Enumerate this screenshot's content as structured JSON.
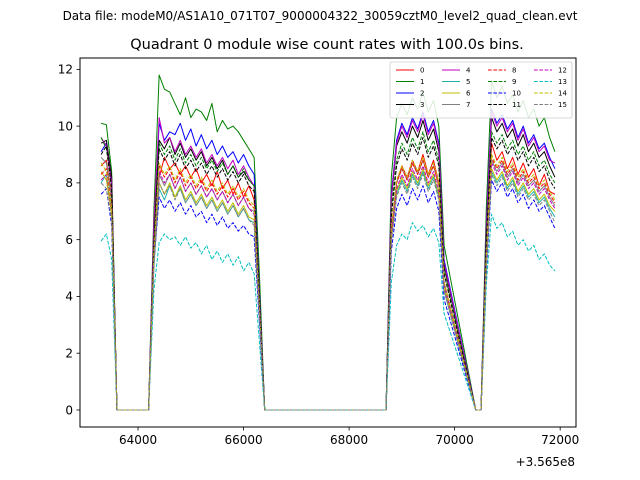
{
  "chart_data": {
    "type": "line",
    "suptitle": "Data file: modeM0/AS1A10_071T07_9000004322_30059cztM0_level2_quad_clean.evt",
    "title": "Quadrant 0 module wise count rates with 100.0s bins.",
    "xlabel": "",
    "ylabel": "",
    "x_offset_label": "+3.565e8",
    "xlim": [
      62900,
      72300
    ],
    "ylim": [
      -0.6,
      12.4
    ],
    "xticks": [
      64000,
      66000,
      68000,
      70000,
      72000
    ],
    "xtick_labels": [
      "64000",
      "66000",
      "68000",
      "70000",
      "72000"
    ],
    "yticks": [
      0,
      2,
      4,
      6,
      8,
      10,
      12
    ],
    "ytick_labels": [
      "0",
      "2",
      "4",
      "6",
      "8",
      "10",
      "12"
    ],
    "grid": false,
    "legend_position": "top-right",
    "legend_ncol": 4,
    "x": [
      63300,
      63400,
      63500,
      63600,
      64200,
      64300,
      64400,
      64500,
      64600,
      64700,
      64800,
      64900,
      65000,
      65100,
      65200,
      65300,
      65400,
      65500,
      65600,
      65700,
      65800,
      65900,
      66000,
      66100,
      66200,
      66300,
      66400,
      66500,
      66600,
      68700,
      68800,
      68900,
      69000,
      69100,
      69200,
      69300,
      69400,
      69500,
      69600,
      69700,
      69800,
      70400,
      70500,
      70600,
      70700,
      70800,
      70900,
      71000,
      71100,
      71200,
      71300,
      71400,
      71500,
      71600,
      71700,
      71800,
      71900
    ],
    "series": [
      {
        "name": "0",
        "color": "#ff0000",
        "dash": "solid",
        "values": [
          8.6,
          8.8,
          7.5,
          0.0,
          0.0,
          5.5,
          8.2,
          8.9,
          8.5,
          8.7,
          8.3,
          8.6,
          8.2,
          8.5,
          8.0,
          8.3,
          7.9,
          8.4,
          7.8,
          8.1,
          7.6,
          8.0,
          7.5,
          7.9,
          7.4,
          3.8,
          0.0,
          0.0,
          0.0,
          0.0,
          6.4,
          8.0,
          8.6,
          8.2,
          8.8,
          8.4,
          9.0,
          8.3,
          8.8,
          8.0,
          4.5,
          0.0,
          0.0,
          5.3,
          9.4,
          8.8,
          9.1,
          8.5,
          8.9,
          8.3,
          8.7,
          8.2,
          8.5,
          7.9,
          8.3,
          7.7,
          7.6
        ]
      },
      {
        "name": "1",
        "color": "#008000",
        "dash": "solid",
        "values": [
          10.1,
          10.05,
          8.4,
          0.0,
          0.0,
          7.0,
          11.8,
          11.3,
          11.2,
          10.8,
          10.4,
          11.0,
          10.3,
          10.6,
          10.5,
          10.2,
          10.8,
          9.8,
          10.2,
          9.9,
          10.0,
          9.8,
          9.5,
          9.2,
          8.9,
          4.8,
          0.0,
          0.0,
          0.0,
          0.0,
          8.2,
          10.3,
          10.8,
          10.4,
          11.0,
          10.6,
          11.2,
          10.5,
          10.9,
          10.0,
          5.8,
          0.0,
          0.0,
          7.1,
          11.6,
          11.0,
          11.4,
          10.8,
          11.1,
          10.5,
          10.9,
          10.3,
          10.6,
          10.0,
          10.3,
          9.6,
          9.1
        ]
      },
      {
        "name": "2",
        "color": "#0000ff",
        "dash": "solid",
        "values": [
          9.1,
          9.4,
          7.9,
          0.0,
          0.0,
          6.4,
          10.1,
          9.5,
          9.8,
          9.7,
          10.1,
          9.5,
          9.9,
          9.3,
          9.7,
          9.2,
          9.5,
          9.0,
          9.3,
          8.9,
          9.1,
          8.7,
          9.0,
          8.6,
          8.3,
          4.2,
          0.0,
          0.0,
          0.0,
          0.0,
          7.6,
          9.5,
          10.1,
          9.7,
          10.3,
          9.9,
          10.5,
          9.8,
          10.2,
          9.4,
          5.3,
          0.0,
          0.0,
          6.5,
          10.6,
          10.1,
          10.4,
          9.9,
          10.2,
          9.6,
          10.0,
          9.4,
          9.7,
          9.2,
          9.4,
          8.9,
          8.5
        ]
      },
      {
        "name": "3",
        "color": "#000000",
        "dash": "solid",
        "values": [
          9.4,
          9.5,
          8.2,
          0.0,
          0.0,
          6.2,
          9.5,
          9.2,
          9.6,
          9.0,
          9.4,
          8.9,
          9.2,
          8.8,
          9.1,
          8.6,
          8.9,
          8.5,
          8.8,
          8.3,
          8.6,
          8.2,
          8.4,
          8.1,
          7.9,
          4.0,
          0.0,
          0.0,
          0.0,
          0.0,
          7.4,
          9.3,
          9.8,
          9.4,
          10.0,
          9.6,
          10.2,
          9.5,
          9.9,
          9.1,
          5.1,
          0.0,
          0.0,
          6.3,
          10.3,
          9.8,
          10.1,
          9.6,
          9.9,
          9.3,
          9.7,
          9.1,
          9.4,
          8.9,
          9.1,
          8.6,
          8.2
        ]
      },
      {
        "name": "4",
        "color": "#bf00bf",
        "dash": "solid",
        "values": [
          9.6,
          9.3,
          8.0,
          0.0,
          0.0,
          6.6,
          10.3,
          9.4,
          9.6,
          9.1,
          9.5,
          9.0,
          9.3,
          8.9,
          9.2,
          8.7,
          9.0,
          8.6,
          8.9,
          8.5,
          8.8,
          8.3,
          8.6,
          8.2,
          7.9,
          4.1,
          0.0,
          0.0,
          0.0,
          0.0,
          7.5,
          9.4,
          10.0,
          9.6,
          10.2,
          9.8,
          10.4,
          9.7,
          10.1,
          9.3,
          5.2,
          0.0,
          0.0,
          6.4,
          10.5,
          10.0,
          10.3,
          9.8,
          10.1,
          9.5,
          9.9,
          9.3,
          9.6,
          9.1,
          9.3,
          8.8,
          8.7
        ]
      },
      {
        "name": "5",
        "color": "#20b2aa",
        "dash": "solid",
        "values": [
          8.0,
          8.3,
          7.0,
          0.0,
          0.0,
          5.0,
          7.8,
          7.4,
          7.9,
          7.5,
          7.8,
          7.3,
          7.6,
          7.2,
          7.5,
          7.1,
          7.4,
          7.0,
          7.3,
          6.9,
          7.2,
          6.8,
          7.1,
          6.7,
          6.6,
          3.3,
          0.0,
          0.0,
          0.0,
          0.0,
          6.0,
          7.6,
          8.1,
          7.7,
          8.3,
          7.9,
          8.4,
          7.8,
          8.2,
          7.5,
          4.2,
          0.0,
          0.0,
          5.0,
          8.4,
          8.0,
          8.3,
          7.8,
          8.1,
          7.6,
          7.9,
          7.5,
          7.7,
          7.3,
          7.5,
          7.1,
          6.8
        ]
      },
      {
        "name": "6",
        "color": "#bfbf00",
        "dash": "solid",
        "values": [
          8.4,
          8.1,
          6.9,
          0.0,
          0.0,
          5.2,
          8.0,
          7.6,
          8.0,
          7.5,
          7.9,
          7.4,
          7.7,
          7.3,
          7.6,
          7.2,
          7.5,
          7.1,
          7.4,
          7.0,
          7.3,
          6.9,
          7.2,
          6.8,
          6.7,
          3.4,
          0.0,
          0.0,
          0.0,
          0.0,
          6.1,
          7.7,
          8.2,
          7.8,
          8.4,
          8.0,
          8.5,
          7.9,
          8.3,
          7.6,
          4.3,
          0.0,
          0.0,
          5.1,
          8.5,
          8.1,
          8.4,
          7.9,
          8.2,
          7.7,
          8.0,
          7.6,
          7.8,
          7.4,
          7.6,
          7.2,
          7.0
        ]
      },
      {
        "name": "7",
        "color": "#808080",
        "dash": "solid",
        "values": [
          8.9,
          8.7,
          7.4,
          0.0,
          0.0,
          5.4,
          8.3,
          7.9,
          8.3,
          7.8,
          8.2,
          7.7,
          8.0,
          7.6,
          7.9,
          7.5,
          7.8,
          7.4,
          7.7,
          7.3,
          7.6,
          7.2,
          7.5,
          7.1,
          7.0,
          3.5,
          0.0,
          0.0,
          0.0,
          0.0,
          6.3,
          8.0,
          8.5,
          8.1,
          8.7,
          8.3,
          8.8,
          8.2,
          8.6,
          7.9,
          4.5,
          0.0,
          0.0,
          5.3,
          8.8,
          8.4,
          8.7,
          8.2,
          8.5,
          8.0,
          8.3,
          7.9,
          8.1,
          7.7,
          7.9,
          7.5,
          7.2
        ]
      },
      {
        "name": "8",
        "color": "#ff0000",
        "dash": "dashed",
        "values": [
          8.3,
          8.5,
          7.2,
          0.0,
          0.0,
          5.4,
          8.6,
          8.2,
          8.5,
          8.0,
          8.4,
          7.9,
          8.2,
          7.8,
          8.1,
          7.7,
          8.0,
          7.6,
          7.9,
          7.5,
          7.8,
          7.4,
          7.7,
          7.3,
          7.1,
          3.6,
          0.0,
          0.0,
          0.0,
          0.0,
          6.3,
          8.0,
          8.5,
          8.1,
          8.7,
          8.3,
          8.8,
          8.2,
          8.6,
          7.9,
          4.5,
          0.0,
          0.0,
          5.4,
          8.9,
          8.5,
          8.8,
          8.3,
          8.6,
          8.1,
          8.4,
          8.0,
          8.2,
          7.8,
          8.0,
          7.6,
          7.3
        ]
      },
      {
        "name": "9",
        "color": "#008000",
        "dash": "dashed",
        "values": [
          9.6,
          9.2,
          7.8,
          0.0,
          0.0,
          6.0,
          9.4,
          9.0,
          9.3,
          8.8,
          9.2,
          8.7,
          9.0,
          8.6,
          8.9,
          8.5,
          8.8,
          8.4,
          8.7,
          8.3,
          8.6,
          8.2,
          8.5,
          8.1,
          7.9,
          4.0,
          0.0,
          0.0,
          0.0,
          0.0,
          7.0,
          8.8,
          9.4,
          9.0,
          9.6,
          9.2,
          9.8,
          9.1,
          9.5,
          8.8,
          4.9,
          0.0,
          0.0,
          6.0,
          9.8,
          9.4,
          9.7,
          9.2,
          9.5,
          9.0,
          9.3,
          8.8,
          9.1,
          8.6,
          8.8,
          8.3,
          8.0
        ]
      },
      {
        "name": "10",
        "color": "#0000ff",
        "dash": "dashed",
        "values": [
          7.6,
          7.8,
          6.5,
          0.0,
          0.0,
          5.2,
          7.5,
          7.1,
          7.4,
          7.0,
          7.3,
          6.9,
          7.2,
          6.8,
          7.0,
          6.6,
          6.9,
          6.5,
          6.8,
          6.4,
          6.6,
          6.3,
          6.5,
          6.2,
          6.1,
          3.1,
          0.0,
          0.0,
          0.0,
          0.0,
          5.6,
          7.1,
          7.6,
          7.2,
          7.8,
          7.4,
          7.9,
          7.3,
          7.7,
          7.0,
          3.9,
          0.0,
          0.0,
          4.8,
          8.1,
          7.7,
          8.0,
          7.5,
          7.8,
          7.3,
          7.6,
          7.1,
          7.4,
          7.0,
          7.2,
          6.8,
          6.4
        ]
      },
      {
        "name": "11",
        "color": "#000000",
        "dash": "dashed",
        "values": [
          9.0,
          9.3,
          7.8,
          0.0,
          0.0,
          5.8,
          9.2,
          8.8,
          9.1,
          8.6,
          9.0,
          8.5,
          8.8,
          8.4,
          8.7,
          8.3,
          8.6,
          8.2,
          8.5,
          8.1,
          8.4,
          8.0,
          8.3,
          7.9,
          7.7,
          3.9,
          0.0,
          0.0,
          0.0,
          0.0,
          6.8,
          8.6,
          9.2,
          8.8,
          9.4,
          9.0,
          9.6,
          8.9,
          9.3,
          8.6,
          4.8,
          0.0,
          0.0,
          5.9,
          9.6,
          9.2,
          9.5,
          9.0,
          9.3,
          8.8,
          9.1,
          8.6,
          8.9,
          8.4,
          8.6,
          8.1,
          7.8
        ]
      },
      {
        "name": "12",
        "color": "#bf00bf",
        "dash": "dashed",
        "values": [
          8.1,
          8.3,
          7.0,
          0.0,
          0.0,
          5.3,
          8.4,
          8.0,
          8.3,
          7.8,
          8.2,
          7.7,
          8.0,
          7.6,
          7.9,
          7.5,
          7.8,
          7.4,
          7.7,
          7.3,
          7.6,
          7.2,
          7.5,
          7.1,
          6.9,
          3.5,
          0.0,
          0.0,
          0.0,
          0.0,
          6.1,
          7.8,
          8.3,
          7.9,
          8.5,
          8.1,
          8.6,
          8.0,
          8.4,
          7.7,
          4.4,
          0.0,
          0.0,
          5.2,
          8.7,
          8.3,
          8.6,
          8.1,
          8.4,
          7.9,
          8.2,
          7.8,
          8.0,
          7.6,
          7.8,
          7.4,
          7.1
        ]
      },
      {
        "name": "13",
        "color": "#00bfbf",
        "dash": "dashed",
        "values": [
          5.95,
          6.2,
          5.3,
          0.0,
          0.0,
          4.2,
          5.9,
          6.2,
          6.0,
          6.1,
          5.8,
          6.1,
          5.7,
          5.9,
          5.5,
          5.8,
          5.3,
          5.6,
          5.2,
          5.5,
          5.1,
          5.4,
          4.9,
          5.2,
          4.8,
          2.4,
          0.0,
          0.0,
          0.0,
          0.0,
          4.5,
          5.8,
          6.2,
          6.0,
          6.6,
          6.3,
          6.5,
          6.1,
          6.4,
          5.9,
          3.4,
          0.0,
          0.0,
          4.4,
          6.9,
          6.4,
          6.6,
          6.1,
          6.3,
          5.8,
          6.0,
          5.6,
          5.8,
          5.3,
          5.5,
          5.1,
          4.9
        ]
      },
      {
        "name": "14",
        "color": "#bfbf00",
        "dash": "dashed",
        "values": [
          8.7,
          8.4,
          7.1,
          0.0,
          0.0,
          5.5,
          8.7,
          8.3,
          8.6,
          8.1,
          8.5,
          8.0,
          8.3,
          7.9,
          8.2,
          7.8,
          8.1,
          7.7,
          8.0,
          7.6,
          7.9,
          7.5,
          7.8,
          7.4,
          7.2,
          3.6,
          0.0,
          0.0,
          0.0,
          0.0,
          6.4,
          8.1,
          8.6,
          8.2,
          8.8,
          8.4,
          8.9,
          8.3,
          8.7,
          8.0,
          4.5,
          0.0,
          0.0,
          5.4,
          9.0,
          8.6,
          8.9,
          8.4,
          8.7,
          8.2,
          8.5,
          8.1,
          8.3,
          7.9,
          8.1,
          7.7,
          7.4
        ]
      },
      {
        "name": "15",
        "color": "#808080",
        "dash": "dashed",
        "values": [
          8.0,
          7.8,
          6.7,
          0.0,
          0.0,
          5.1,
          8.0,
          7.6,
          7.9,
          7.4,
          7.8,
          7.3,
          7.6,
          7.2,
          7.5,
          7.1,
          7.4,
          7.0,
          7.3,
          6.9,
          7.2,
          6.8,
          7.1,
          6.7,
          6.5,
          3.3,
          0.0,
          0.0,
          0.0,
          0.0,
          5.9,
          7.5,
          8.0,
          7.6,
          8.2,
          7.8,
          8.3,
          7.7,
          8.1,
          7.4,
          4.2,
          0.0,
          0.0,
          5.0,
          8.3,
          7.9,
          8.2,
          7.7,
          8.0,
          7.5,
          7.8,
          7.4,
          7.6,
          7.2,
          7.4,
          7.0,
          6.6
        ]
      }
    ]
  }
}
